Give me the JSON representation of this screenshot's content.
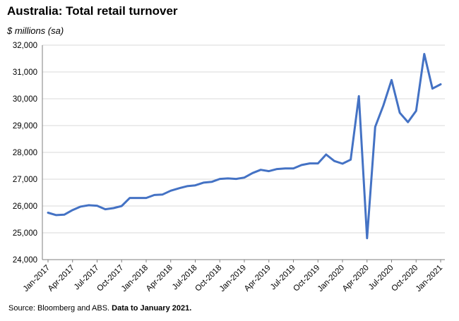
{
  "chart_data": {
    "type": "line",
    "title": "Australia: Total retail turnover",
    "ylabel": "$ millions (sa)",
    "xlabel": "",
    "ylim": [
      24000,
      32000
    ],
    "yticks": [
      24000,
      25000,
      26000,
      27000,
      28000,
      29000,
      30000,
      31000,
      32000
    ],
    "ytick_labels": [
      "24,000",
      "25,000",
      "26,000",
      "27,000",
      "28,000",
      "29,000",
      "30,000",
      "31,000",
      "32,000"
    ],
    "xtick_labels": [
      "Jan-2017",
      "Apr-2017",
      "Jul-2017",
      "Oct-2017",
      "Jan-2018",
      "Apr-2018",
      "Jul-2018",
      "Oct-2018",
      "Jan-2019",
      "Apr-2019",
      "Jul-2019",
      "Oct-2019",
      "Jan-2020",
      "Apr-2020",
      "Jul-2020",
      "Oct-2020",
      "Jan-2021"
    ],
    "grid": "horizontal",
    "legend": "none",
    "line_color": "#4472C4",
    "series": [
      {
        "x": [
          "2017-01",
          "2017-02",
          "2017-03",
          "2017-04",
          "2017-05",
          "2017-06",
          "2017-07",
          "2017-08",
          "2017-09",
          "2017-10",
          "2017-11",
          "2017-12",
          "2018-01",
          "2018-02",
          "2018-03",
          "2018-04",
          "2018-05",
          "2018-06",
          "2018-07",
          "2018-08",
          "2018-09",
          "2018-10",
          "2018-11",
          "2018-12",
          "2019-01",
          "2019-02",
          "2019-03",
          "2019-04",
          "2019-05",
          "2019-06",
          "2019-07",
          "2019-08",
          "2019-09",
          "2019-10",
          "2019-11",
          "2019-12",
          "2020-01",
          "2020-02",
          "2020-03",
          "2020-04",
          "2020-05",
          "2020-06",
          "2020-07",
          "2020-08",
          "2020-09",
          "2020-10",
          "2020-11",
          "2020-12",
          "2021-01"
        ],
        "values": [
          25750,
          25660,
          25680,
          25850,
          25980,
          26030,
          26010,
          25880,
          25920,
          26000,
          26300,
          26300,
          26300,
          26410,
          26430,
          26570,
          26660,
          26740,
          26770,
          26870,
          26900,
          27010,
          27030,
          27010,
          27060,
          27230,
          27350,
          27300,
          27380,
          27400,
          27400,
          27530,
          27590,
          27590,
          27920,
          27680,
          27580,
          27730,
          30100,
          24800,
          28950,
          29750,
          30700,
          29480,
          29130,
          29550,
          31670,
          30380,
          30540
        ]
      }
    ]
  },
  "source": {
    "text": "Source: Bloomberg and ABS.",
    "bold": "Data to January 2021."
  }
}
